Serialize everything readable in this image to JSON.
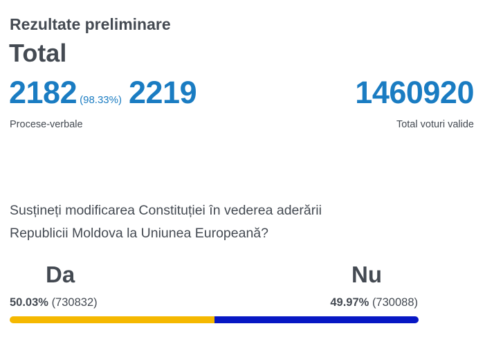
{
  "header": {
    "subtitle": "Rezultate preliminare",
    "title": "Total"
  },
  "reports": {
    "processed": "2182",
    "processed_percent": "(98.33%)",
    "total": "2219",
    "label": "Procese-verbale"
  },
  "valid_votes": {
    "value": "1460920",
    "label": "Total voturi valide"
  },
  "question": {
    "line1": "Susțineți modificarea Constituției în vederea aderării",
    "line2": "Republicii Moldova la Uniunea Europeană?"
  },
  "options": {
    "yes": {
      "label": "Da",
      "percent": "50.03%",
      "votes": "(730832)",
      "share": 0.5003,
      "color": "#f5b800"
    },
    "no": {
      "label": "Nu",
      "percent": "49.97%",
      "votes": "(730088)",
      "share": 0.4997,
      "color": "#0717c4"
    }
  }
}
